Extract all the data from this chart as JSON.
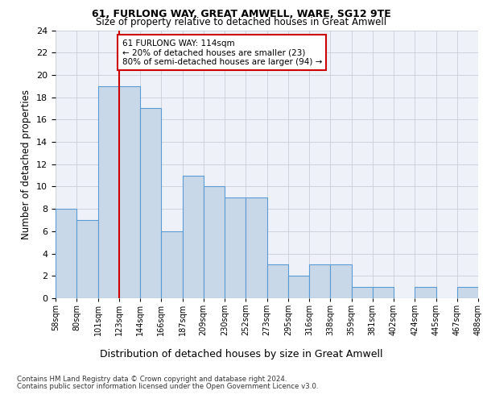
{
  "title1": "61, FURLONG WAY, GREAT AMWELL, WARE, SG12 9TE",
  "title2": "Size of property relative to detached houses in Great Amwell",
  "xlabel": "Distribution of detached houses by size in Great Amwell",
  "ylabel": "Number of detached properties",
  "bar_values": [
    8,
    7,
    19,
    19,
    17,
    6,
    11,
    10,
    9,
    9,
    3,
    2,
    3,
    3,
    1,
    1,
    0,
    1,
    0,
    1
  ],
  "xtick_labels": [
    "58sqm",
    "80sqm",
    "101sqm",
    "123sqm",
    "144sqm",
    "166sqm",
    "187sqm",
    "209sqm",
    "230sqm",
    "252sqm",
    "273sqm",
    "295sqm",
    "316sqm",
    "338sqm",
    "359sqm",
    "381sqm",
    "402sqm",
    "424sqm",
    "445sqm",
    "467sqm",
    "488sqm"
  ],
  "bar_color": "#c8d8e8",
  "bar_edge_color": "#5b9bd5",
  "vline_x": 2.5,
  "vline_color": "#cc0000",
  "ylim": [
    0,
    24
  ],
  "yticks": [
    0,
    2,
    4,
    6,
    8,
    10,
    12,
    14,
    16,
    18,
    20,
    22,
    24
  ],
  "annotation_text": "61 FURLONG WAY: 114sqm\n← 20% of detached houses are smaller (23)\n80% of semi-detached houses are larger (94) →",
  "annotation_box_color": "#ffffff",
  "annotation_box_edge": "#cc0000",
  "footer1": "Contains HM Land Registry data © Crown copyright and database right 2024.",
  "footer2": "Contains public sector information licensed under the Open Government Licence v3.0.",
  "bg_color": "#eef2f8"
}
